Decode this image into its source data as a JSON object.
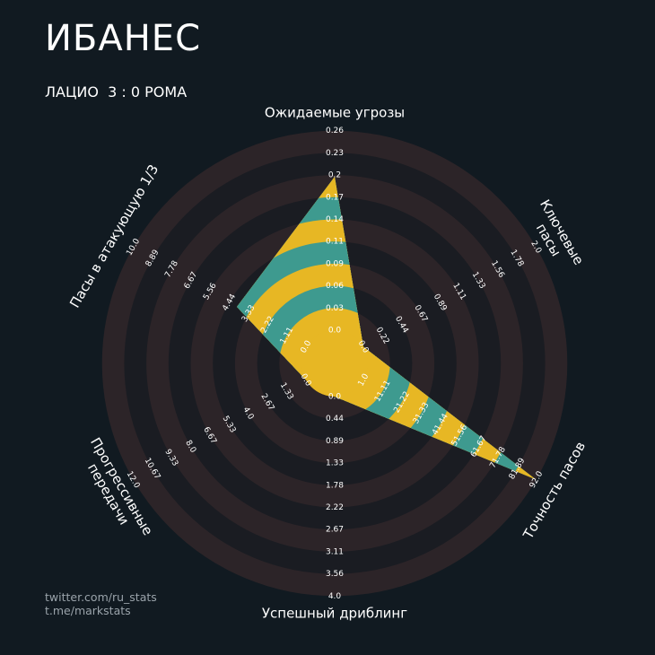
{
  "title": "ИБАНЕС",
  "subtitle": "ЛАЦИО  3 : 0 РОМА",
  "credits": [
    "twitter.com/ru_stats",
    "t.me/markstats"
  ],
  "colors": {
    "background": "#111a21",
    "ring_dark": "#2c2428",
    "ring_light": "#1a1c22",
    "fill_teal": "#3e9a8f",
    "fill_yellow": "#e7b724",
    "tick_text": "#ffffff",
    "label_text": "#ffffff"
  },
  "chart_data": {
    "type": "radar",
    "player": "ИБАНЕС",
    "axes": [
      {
        "label": "Ожидаемые угрозы",
        "max": 0.26,
        "value": 0.2,
        "ticks": [
          "0.0",
          "0.03",
          "0.06",
          "0.09",
          "0.11",
          "0.14",
          "0.17",
          "0.2",
          "0.23",
          "0.26"
        ]
      },
      {
        "label": "Ключевые\nпасы",
        "max": 2.0,
        "value": 0.0,
        "ticks": [
          "0.0",
          "0.22",
          "0.44",
          "0.67",
          "0.89",
          "1.11",
          "1.33",
          "1.56",
          "1.78",
          "2.0"
        ]
      },
      {
        "label": "Точность пасов",
        "max": 92.0,
        "value": 92.0,
        "ticks": [
          "1.0",
          "11.11",
          "21.22",
          "31.33",
          "41.44",
          "51.56",
          "61.67",
          "71.78",
          "81.89",
          "92.0"
        ]
      },
      {
        "label": "Успешный дриблинг",
        "max": 4.0,
        "value": 0.0,
        "ticks": [
          "0.0",
          "0.44",
          "0.89",
          "1.33",
          "1.78",
          "2.22",
          "2.67",
          "3.11",
          "3.56",
          "4.0"
        ]
      },
      {
        "label": "Прогрессивные\nпередачи",
        "max": 12.0,
        "value": 0.0,
        "ticks": [
          "0.0",
          "1.33",
          "2.67",
          "4.0",
          "5.33",
          "6.67",
          "8.0",
          "9.33",
          "10.67",
          "12.0"
        ]
      },
      {
        "label": "Пасы в атакующую 1/3",
        "max": 10.0,
        "value": 4.0,
        "ticks": [
          "0.0",
          "1.11",
          "2.22",
          "3.33",
          "4.44",
          "5.56",
          "6.67",
          "7.78",
          "8.89",
          "10.0"
        ]
      }
    ]
  }
}
